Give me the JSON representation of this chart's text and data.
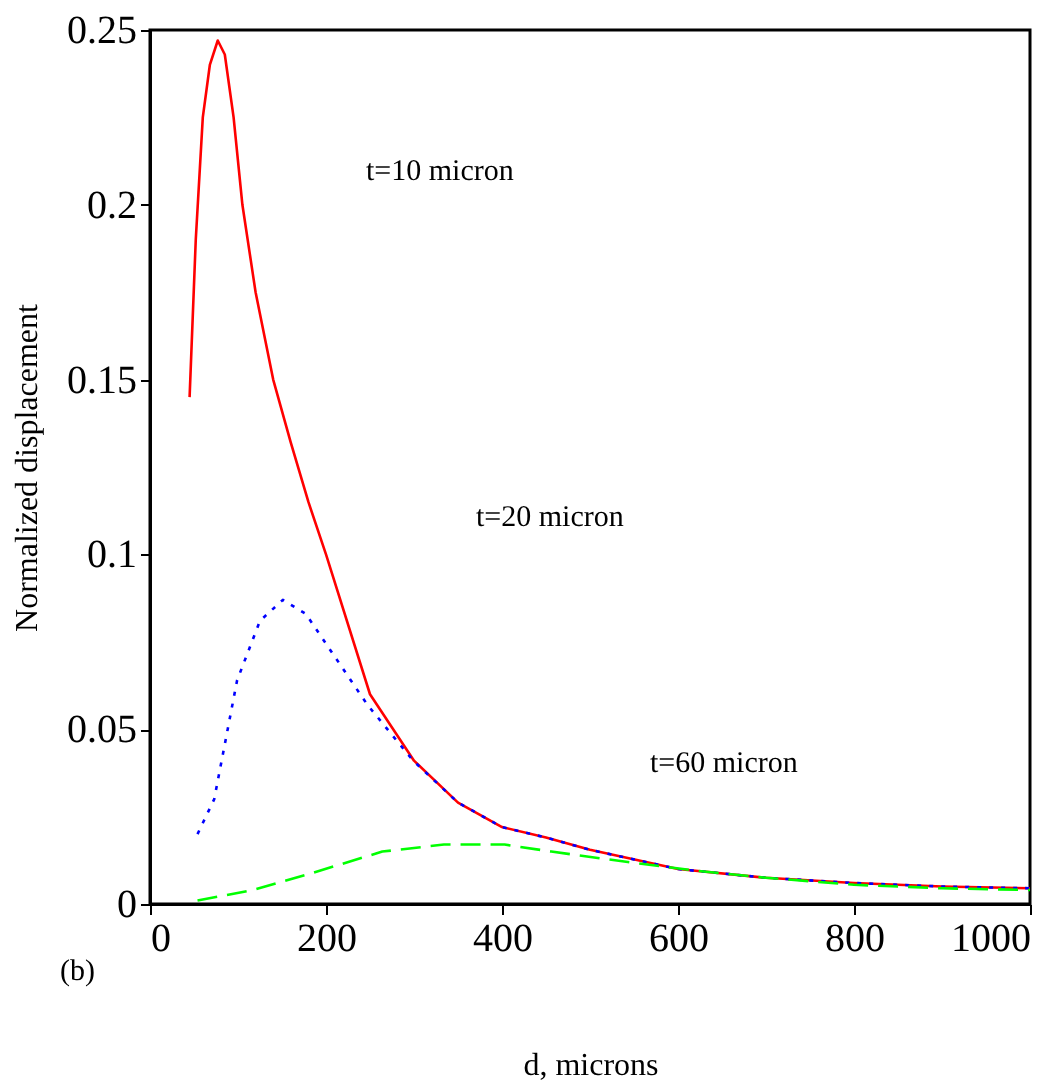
{
  "chart_data": {
    "type": "line",
    "xlabel": "d, microns",
    "ylabel": "Normalized displacement",
    "xlim": [
      0,
      1000
    ],
    "ylim": [
      0,
      0.25
    ],
    "xticks": [
      0,
      200,
      400,
      600,
      800,
      1000
    ],
    "yticks": [
      0,
      0.05,
      0.1,
      0.15,
      0.2,
      0.25
    ],
    "grid": false,
    "marker": "none",
    "series": [
      {
        "color": "#ff0000",
        "line_style": "solid",
        "x": [
          45,
          52,
          60,
          68,
          77,
          85,
          95,
          105,
          120,
          140,
          160,
          180,
          200,
          250,
          300,
          350,
          400,
          450,
          500,
          600,
          700,
          800,
          900,
          1000
        ],
        "values": [
          0.145,
          0.19,
          0.225,
          0.24,
          0.247,
          0.243,
          0.225,
          0.2,
          0.175,
          0.15,
          0.132,
          0.115,
          0.1,
          0.06,
          0.041,
          0.029,
          0.022,
          0.019,
          0.0155,
          0.01,
          0.0075,
          0.006,
          0.005,
          0.0045
        ]
      },
      {
        "color": "#0000ff",
        "line_style": "dotted",
        "x": [
          54,
          73,
          99,
          125,
          151,
          177,
          212,
          247,
          299,
          350,
          400,
          450,
          500,
          600,
          700,
          800,
          900,
          1000
        ],
        "values": [
          0.02,
          0.03,
          0.064,
          0.081,
          0.087,
          0.083,
          0.07,
          0.057,
          0.041,
          0.029,
          0.022,
          0.019,
          0.0155,
          0.01,
          0.0075,
          0.006,
          0.005,
          0.0045
        ]
      },
      {
        "color": "#00ff00",
        "line_style": "dashed",
        "x": [
          54,
          117,
          186,
          264,
          334,
          403,
          456,
          543,
          621,
          700,
          800,
          900,
          1000
        ],
        "values": [
          0.001,
          0.004,
          0.009,
          0.015,
          0.017,
          0.017,
          0.015,
          0.012,
          0.0095,
          0.0075,
          0.0055,
          0.0045,
          0.004
        ]
      }
    ],
    "annotations": [
      "t=10 micron",
      "t=20 micron",
      "t=60 micron",
      "(b)"
    ]
  }
}
